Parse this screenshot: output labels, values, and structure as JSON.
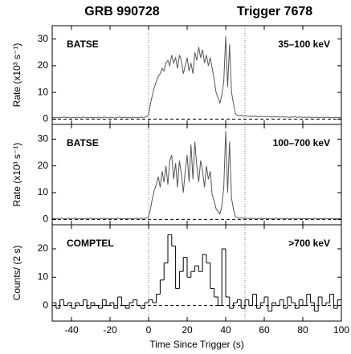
{
  "header": {
    "left": "GRB 990728",
    "right": "Trigger 7678"
  },
  "chart_data": [
    {
      "type": "line",
      "ylabel": "Rate (x10³ s⁻¹)",
      "labels": {
        "left": "BATSE",
        "right": "35–100 keV"
      },
      "color": "#555555",
      "xlim": [
        -50,
        100
      ],
      "xticks": [
        -40,
        -20,
        0,
        20,
        40,
        60,
        80,
        100
      ],
      "ylim": [
        -2,
        35
      ],
      "yticks": [
        0,
        10,
        20,
        30
      ],
      "vlines": [
        0,
        50
      ],
      "hline": 0,
      "x": [
        -50,
        -49,
        -48,
        -47,
        -46,
        -45,
        -44,
        -43,
        -42,
        -41,
        -40,
        -39,
        -38,
        -37,
        -36,
        -35,
        -34,
        -33,
        -32,
        -31,
        -30,
        -29,
        -28,
        -27,
        -26,
        -25,
        -24,
        -23,
        -22,
        -21,
        -20,
        -19,
        -18,
        -17,
        -16,
        -15,
        -14,
        -13,
        -12,
        -11,
        -10,
        -9,
        -8,
        -7,
        -6,
        -5,
        -4,
        -3,
        -2,
        -1,
        0,
        1,
        2,
        3,
        4,
        5,
        6,
        7,
        8,
        9,
        10,
        11,
        12,
        13,
        14,
        15,
        16,
        17,
        18,
        19,
        20,
        21,
        22,
        23,
        24,
        25,
        26,
        27,
        28,
        29,
        30,
        31,
        32,
        33,
        34,
        35,
        36,
        37,
        38,
        39,
        40,
        41,
        42,
        43,
        44,
        45,
        46,
        47,
        48,
        49,
        50,
        51,
        52,
        53,
        54,
        55,
        56,
        57,
        58,
        59,
        60,
        61,
        62,
        63,
        64,
        65,
        66,
        67,
        68,
        69,
        70,
        71,
        72,
        73,
        74,
        75,
        76,
        77,
        78,
        79,
        80,
        81,
        82,
        83,
        84,
        85,
        86,
        87,
        88,
        89,
        90,
        91,
        92,
        93,
        94,
        95,
        96,
        97,
        98,
        99,
        100
      ],
      "values": [
        0.6,
        0.5,
        0.7,
        0.4,
        0.6,
        0.5,
        0.8,
        0.6,
        0.5,
        0.7,
        0.4,
        0.6,
        0.5,
        0.7,
        0.6,
        0.5,
        0.8,
        0.4,
        0.6,
        0.5,
        0.7,
        0.5,
        0.6,
        0.4,
        0.7,
        0.6,
        0.5,
        0.8,
        0.6,
        0.5,
        0.6,
        0.7,
        0.4,
        0.5,
        0.6,
        0.8,
        0.5,
        0.6,
        0.7,
        0.5,
        0.6,
        0.4,
        0.7,
        0.5,
        0.6,
        0.5,
        0.8,
        0.6,
        0.7,
        0.9,
        1.5,
        6,
        9,
        12,
        14,
        16,
        17,
        19,
        18,
        21,
        22,
        20,
        24,
        21,
        23,
        19,
        24,
        22,
        17,
        20,
        23,
        18,
        21,
        17,
        25,
        22,
        27,
        23,
        26,
        21,
        24,
        20,
        23,
        19,
        15,
        10,
        8,
        6,
        9,
        14,
        31,
        12,
        28,
        10,
        6,
        2,
        1.5,
        1.2,
        1.5,
        1.1,
        1.3,
        1.2,
        1.0,
        1.1,
        0.9,
        1.2,
        1.0,
        0.8,
        1.1,
        0.9,
        1.0,
        0.8,
        1.0,
        0.9,
        0.7,
        1.0,
        0.8,
        0.9,
        0.7,
        0.8,
        0.9,
        0.7,
        0.8,
        0.6,
        0.8,
        0.7,
        0.9,
        0.6,
        0.7,
        0.8,
        0.6,
        0.7,
        0.6,
        0.8,
        0.5,
        0.7,
        0.6,
        0.7,
        0.5,
        0.6,
        0.7,
        0.5,
        0.6,
        0.7,
        0.5,
        0.6,
        0.5,
        0.7,
        0.6,
        0.5,
        0.6
      ]
    },
    {
      "type": "line",
      "ylabel": "Rate (x10³ s⁻¹)",
      "labels": {
        "left": "BATSE",
        "right": "100–700 keV"
      },
      "color": "#555555",
      "xlim": [
        -50,
        100
      ],
      "xticks": [
        -40,
        -20,
        0,
        20,
        40,
        60,
        80,
        100
      ],
      "ylim": [
        -2,
        35.5
      ],
      "yticks": [
        0,
        10,
        20,
        30
      ],
      "vlines": [
        0,
        50
      ],
      "hline": 0,
      "x": [
        -50,
        -49,
        -48,
        -47,
        -46,
        -45,
        -44,
        -43,
        -42,
        -41,
        -40,
        -39,
        -38,
        -37,
        -36,
        -35,
        -34,
        -33,
        -32,
        -31,
        -30,
        -29,
        -28,
        -27,
        -26,
        -25,
        -24,
        -23,
        -22,
        -21,
        -20,
        -19,
        -18,
        -17,
        -16,
        -15,
        -14,
        -13,
        -12,
        -11,
        -10,
        -9,
        -8,
        -7,
        -6,
        -5,
        -4,
        -3,
        -2,
        -1,
        0,
        1,
        2,
        3,
        4,
        5,
        6,
        7,
        8,
        9,
        10,
        11,
        12,
        13,
        14,
        15,
        16,
        17,
        18,
        19,
        20,
        21,
        22,
        23,
        24,
        25,
        26,
        27,
        28,
        29,
        30,
        31,
        32,
        33,
        34,
        35,
        36,
        37,
        38,
        39,
        40,
        41,
        42,
        43,
        44,
        45,
        46,
        47,
        48,
        49,
        50,
        51,
        52,
        53,
        54,
        55,
        56,
        57,
        58,
        59,
        60,
        61,
        62,
        63,
        64,
        65,
        66,
        67,
        68,
        69,
        70,
        71,
        72,
        73,
        74,
        75,
        76,
        77,
        78,
        79,
        80,
        81,
        82,
        83,
        84,
        85,
        86,
        87,
        88,
        89,
        90,
        91,
        92,
        93,
        94,
        95,
        96,
        97,
        98,
        99,
        100
      ],
      "values": [
        0.3,
        0.4,
        0.2,
        0.4,
        0.3,
        0.5,
        0.3,
        0.2,
        0.4,
        0.3,
        0.4,
        0.3,
        0.5,
        0.2,
        0.3,
        0.4,
        0.3,
        0.2,
        0.4,
        0.3,
        0.5,
        0.3,
        0.4,
        0.2,
        0.3,
        0.4,
        0.3,
        0.5,
        0.2,
        0.4,
        0.3,
        0.4,
        0.2,
        0.3,
        0.5,
        0.3,
        0.4,
        0.2,
        0.3,
        0.4,
        0.3,
        0.2,
        0.4,
        0.3,
        0.5,
        0.3,
        0.4,
        0.3,
        0.4,
        0.5,
        1,
        4,
        8,
        11,
        13,
        16,
        12,
        18,
        14,
        20,
        13,
        22,
        24,
        15,
        21,
        12,
        22,
        17,
        10,
        18,
        24,
        14,
        28,
        15,
        29,
        20,
        14,
        22,
        18,
        12,
        20,
        15,
        18,
        9,
        7,
        4,
        3,
        2,
        5,
        12,
        33,
        10,
        29,
        8,
        4,
        1,
        0.8,
        0.5,
        0.7,
        0.4,
        0.5,
        0.4,
        0.3,
        0.5,
        0.3,
        0.4,
        0.2,
        0.4,
        0.3,
        0.5,
        0.3,
        0.4,
        0.3,
        0.2,
        0.4,
        0.3,
        0.5,
        0.3,
        0.2,
        0.4,
        0.3,
        0.3,
        0.4,
        0.2,
        0.3,
        0.4,
        0.3,
        0.2,
        0.4,
        0.3,
        0.3,
        0.2,
        0.4,
        0.3,
        0.2,
        0.3,
        0.4,
        0.2,
        0.3,
        0.3,
        0.2,
        0.4,
        0.3,
        0.2,
        0.3,
        0.2,
        0.4,
        0.3,
        0.2,
        0.3,
        0.2
      ]
    },
    {
      "type": "histogram",
      "ylabel": "Counts/ (2 s)",
      "labels": {
        "left": "COMPTEL",
        "right": ">700 keV"
      },
      "xlabel": "Time Since Trigger (s)",
      "color": "#000000",
      "xlim": [
        -50,
        100
      ],
      "xticks": [
        -40,
        -20,
        0,
        20,
        40,
        60,
        80,
        100
      ],
      "ylim": [
        -5.5,
        28.5
      ],
      "yticks": [
        0,
        10,
        20
      ],
      "vlines": [
        0,
        50
      ],
      "hline": 0,
      "bins": [
        -50,
        -48,
        -46,
        -44,
        -42,
        -40,
        -38,
        -36,
        -34,
        -32,
        -30,
        -28,
        -26,
        -24,
        -22,
        -20,
        -18,
        -16,
        -14,
        -12,
        -10,
        -8,
        -6,
        -4,
        -2,
        0,
        2,
        4,
        6,
        8,
        10,
        12,
        14,
        16,
        18,
        20,
        22,
        24,
        26,
        28,
        30,
        32,
        34,
        36,
        38,
        40,
        42,
        44,
        46,
        48,
        50,
        52,
        54,
        56,
        58,
        60,
        62,
        64,
        66,
        68,
        70,
        72,
        74,
        76,
        78,
        80,
        82,
        84,
        86,
        88,
        90,
        92,
        94,
        96,
        98,
        100
      ],
      "values": [
        1,
        -1,
        2,
        0,
        1,
        -1,
        1,
        0,
        2,
        -1,
        1,
        0,
        -1,
        2,
        0,
        1,
        -1,
        3,
        0,
        -1,
        1,
        2,
        0,
        -1,
        1,
        2,
        1,
        4,
        9,
        15,
        25,
        21,
        6,
        12,
        17,
        10,
        12,
        14,
        12,
        18,
        15,
        6,
        3,
        0,
        20,
        3,
        -1,
        1,
        2,
        -1,
        2,
        0,
        4,
        -1,
        1,
        3,
        -2,
        1,
        0,
        2,
        -1,
        3,
        1,
        -1,
        2,
        0,
        4,
        1,
        -2,
        3,
        0,
        1,
        4,
        -1,
        2
      ]
    }
  ]
}
